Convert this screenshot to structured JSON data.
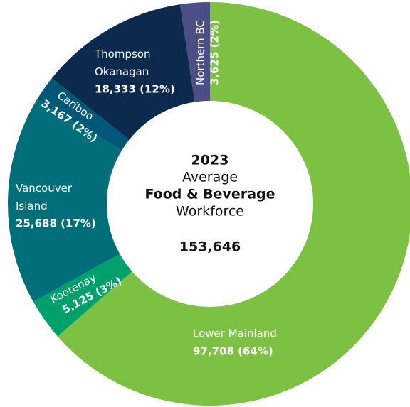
{
  "chart_data": {
    "type": "donut",
    "categories": [
      "Lower Mainland",
      "Kootenay",
      "Vancouver Island",
      "Cariboo",
      "Thompson Okanagan",
      "Northern BC"
    ],
    "values": [
      97708,
      5125,
      25688,
      3167,
      18333,
      3625
    ],
    "value_labels": [
      "97,708 (64%)",
      "5,125 (3%)",
      "25,688 (17%)",
      "3,167 (2%)",
      "18,333 (12%)",
      "3,625 (2%)"
    ],
    "colors": [
      "#7dc142",
      "#00a06b",
      "#006f7a",
      "#005777",
      "#0b2a4e",
      "#4b4f85"
    ],
    "center_text": [
      "2023",
      "Average",
      "Food & Beverage",
      "Workforce"
    ],
    "total": {
      "value": 153646,
      "label": "153,646"
    }
  }
}
